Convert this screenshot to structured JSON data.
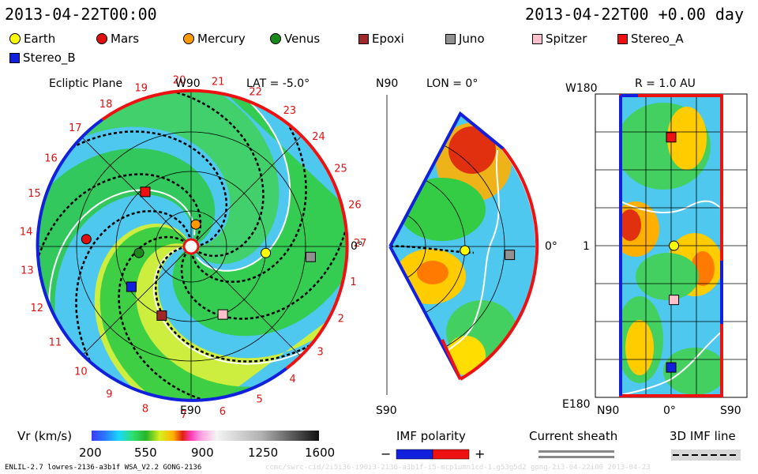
{
  "header": {
    "left_time": "2013-04-22T00:00",
    "right_time": "2013-04-22T00 +0.00 day"
  },
  "legend": [
    {
      "name": "Earth",
      "color": "#ffff00",
      "shape": "circle"
    },
    {
      "name": "Mars",
      "color": "#e01010",
      "shape": "circle"
    },
    {
      "name": "Mercury",
      "color": "#ff9900",
      "shape": "circle"
    },
    {
      "name": "Venus",
      "color": "#1a8a1a",
      "shape": "circle"
    },
    {
      "name": "Epoxi",
      "color": "#a02828",
      "shape": "square"
    },
    {
      "name": "Juno",
      "color": "#909090",
      "shape": "square"
    },
    {
      "name": "Spitzer",
      "color": "#ffc0cc",
      "shape": "square"
    },
    {
      "name": "Stereo_A",
      "color": "#ee1111",
      "shape": "square"
    },
    {
      "name": "Stereo_B",
      "color": "#1020dd",
      "shape": "square"
    }
  ],
  "ecliptic": {
    "title": "Ecliptic Plane",
    "lat": "LAT = -5.0°",
    "top_label": "W90",
    "bottom_label": "E90",
    "right_label": "0°",
    "carrington_labels": [
      "1",
      "2",
      "3",
      "4",
      "5",
      "6",
      "7",
      "8",
      "9",
      "10",
      "11",
      "12",
      "13",
      "14",
      "15",
      "16",
      "17",
      "18",
      "19",
      "20",
      "21",
      "22",
      "23",
      "24",
      "25",
      "26",
      "27"
    ]
  },
  "meridional": {
    "title": "LON = 0°",
    "top_label": "N90",
    "bottom_label": "S90",
    "right_label": "0°"
  },
  "sphere": {
    "title": "R = 1.0 AU",
    "top_label": "W180",
    "mid_label": "1",
    "bottom_label": "E180",
    "x_left": "N90",
    "x_mid": "0°",
    "x_right": "S90"
  },
  "colorbar": {
    "label": "Vr (km/s)",
    "ticks": [
      "200",
      "550",
      "900",
      "1250",
      "1600"
    ]
  },
  "imf": {
    "title": "IMF polarity",
    "minus": "−",
    "plus": "+",
    "neg_color": "#1020dd",
    "pos_color": "#ee1111"
  },
  "current_sheath": {
    "title": "Current sheath"
  },
  "imf_line": {
    "title": "3D IMF line"
  },
  "footer": {
    "model": "ENLIL-2.7 lowres-2136-a3b1f WSA_V2.2 GONG-2136",
    "watermark": "ccmc/swrc-cid/2i5i36-i90i3-2136-a3b1f-i5-mcp1umn1cd-1.g53g5d2 gong-2i3-04-22i00   2013-04-23"
  },
  "chart_data": [
    {
      "type": "heatmap",
      "title": "Ecliptic Plane",
      "quantity": "Vr (km/s)",
      "range": [
        200,
        1600
      ],
      "bodies": [
        {
          "name": "Earth",
          "angle_deg": -5,
          "r_au": 1.0
        },
        {
          "name": "Mercury",
          "angle_deg": 78,
          "r_au": 0.3
        },
        {
          "name": "Venus",
          "angle_deg": 187,
          "r_au": 0.7
        },
        {
          "name": "Mars",
          "angle_deg": 176,
          "r_au": 1.4
        },
        {
          "name": "Juno",
          "angle_deg": -5,
          "r_au": 1.6
        },
        {
          "name": "Stereo_A",
          "angle_deg": 130,
          "r_au": 0.95
        },
        {
          "name": "Stereo_B",
          "angle_deg": 214,
          "r_au": 0.96
        },
        {
          "name": "Epoxi",
          "angle_deg": 247,
          "r_au": 1.0
        },
        {
          "name": "Spitzer",
          "angle_deg": 295,
          "r_au": 1.0
        }
      ]
    },
    {
      "type": "heatmap",
      "title": "LON = 0°",
      "quantity": "Vr (km/s)",
      "bodies": [
        {
          "name": "Earth",
          "lat_deg": -3,
          "r_au": 1.0
        },
        {
          "name": "Juno",
          "lat_deg": -4,
          "r_au": 1.6
        }
      ]
    },
    {
      "type": "heatmap",
      "title": "R = 1.0 AU",
      "quantity": "Vr (km/s)",
      "bodies": [
        {
          "name": "Stereo_A",
          "lat_deg": 0,
          "lon_deg": 130
        },
        {
          "name": "Earth",
          "lat_deg": -5,
          "lon_deg": 0
        },
        {
          "name": "Spitzer",
          "lat_deg": -5,
          "lon_deg": -65
        },
        {
          "name": "Stereo_B",
          "lat_deg": 0,
          "lon_deg": -146
        }
      ]
    }
  ]
}
